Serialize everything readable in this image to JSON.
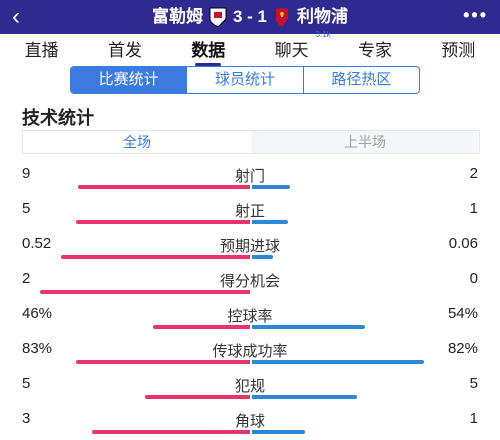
{
  "header": {
    "back_icon": "back-arrow-icon",
    "home_team": "富勒姆",
    "score": "3 - 1",
    "away_team": "利物浦",
    "more_icon": "more-dots-icon"
  },
  "nav": {
    "tabs": [
      {
        "label": "直播"
      },
      {
        "label": "首发"
      },
      {
        "label": "数据",
        "active": true
      },
      {
        "label": "聊天",
        "badge": "3.1k"
      },
      {
        "label": "专家"
      },
      {
        "label": "预测"
      }
    ]
  },
  "segments": [
    "比赛统计",
    "球员统计",
    "路径热区"
  ],
  "section_title": "技术统计",
  "period": [
    "全场",
    "上半场"
  ],
  "colors": {
    "home": "#e8336b",
    "away": "#2f86d6",
    "header": "#2e2a8f",
    "accent": "#3a7be0"
  },
  "stats": [
    {
      "name": "射门",
      "home": "9",
      "away": "2",
      "home_frac": 0.82,
      "away_frac": 0.18
    },
    {
      "name": "射正",
      "home": "5",
      "away": "1",
      "home_frac": 0.83,
      "away_frac": 0.17
    },
    {
      "name": "预期进球",
      "home": "0.52",
      "away": "0.06",
      "home_frac": 0.9,
      "away_frac": 0.1
    },
    {
      "name": "得分机会",
      "home": "2",
      "away": "0",
      "home_frac": 1.0,
      "away_frac": 0.0
    },
    {
      "name": "控球率",
      "home": "46%",
      "away": "54%",
      "home_frac": 0.46,
      "away_frac": 0.54
    },
    {
      "name": "传球成功率",
      "home": "83%",
      "away": "82%",
      "home_frac": 0.83,
      "away_frac": 0.82
    },
    {
      "name": "犯规",
      "home": "5",
      "away": "5",
      "home_frac": 0.5,
      "away_frac": 0.5
    },
    {
      "name": "角球",
      "home": "3",
      "away": "1",
      "home_frac": 0.75,
      "away_frac": 0.25
    }
  ]
}
